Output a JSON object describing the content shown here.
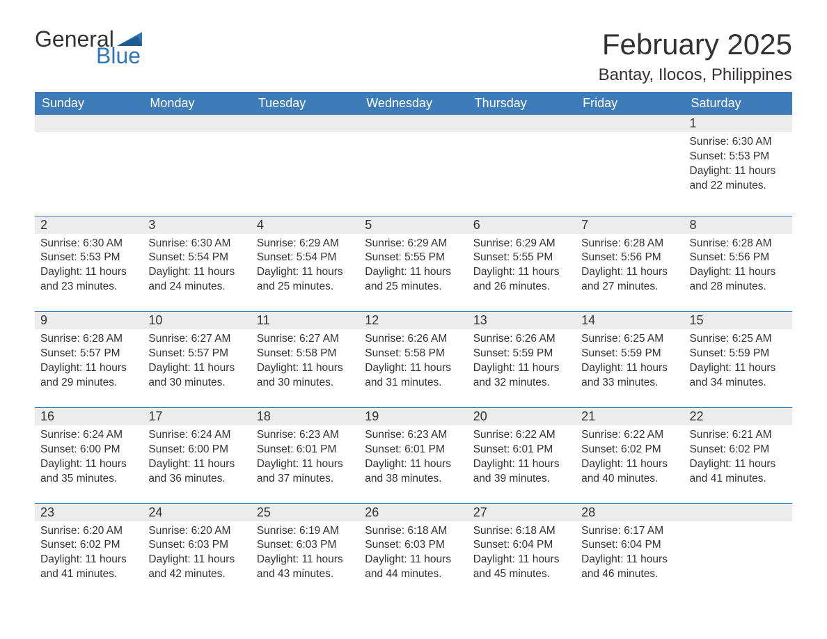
{
  "logo": {
    "text_general": "General",
    "text_blue": "Blue",
    "flag_color": "#2f77bb"
  },
  "header": {
    "month_title": "February 2025",
    "location": "Bantay, Ilocos, Philippines"
  },
  "styling": {
    "header_bg": "#3d7cb9",
    "header_text": "#ffffff",
    "daynum_bg": "#ececec",
    "body_text": "#333333",
    "rule_color": "#3d7cb9",
    "page_bg": "#ffffff",
    "font_family": "Arial",
    "title_fontsize_pt": 32,
    "location_fontsize_pt": 18,
    "dayheader_fontsize_pt": 14,
    "cell_fontsize_pt": 12
  },
  "day_headers": [
    "Sunday",
    "Monday",
    "Tuesday",
    "Wednesday",
    "Thursday",
    "Friday",
    "Saturday"
  ],
  "weeks": [
    [
      {
        "day": "",
        "sunrise": "",
        "sunset": "",
        "daylight": ""
      },
      {
        "day": "",
        "sunrise": "",
        "sunset": "",
        "daylight": ""
      },
      {
        "day": "",
        "sunrise": "",
        "sunset": "",
        "daylight": ""
      },
      {
        "day": "",
        "sunrise": "",
        "sunset": "",
        "daylight": ""
      },
      {
        "day": "",
        "sunrise": "",
        "sunset": "",
        "daylight": ""
      },
      {
        "day": "",
        "sunrise": "",
        "sunset": "",
        "daylight": ""
      },
      {
        "day": "1",
        "sunrise": "Sunrise: 6:30 AM",
        "sunset": "Sunset: 5:53 PM",
        "daylight": "Daylight: 11 hours and 22 minutes."
      }
    ],
    [
      {
        "day": "2",
        "sunrise": "Sunrise: 6:30 AM",
        "sunset": "Sunset: 5:53 PM",
        "daylight": "Daylight: 11 hours and 23 minutes."
      },
      {
        "day": "3",
        "sunrise": "Sunrise: 6:30 AM",
        "sunset": "Sunset: 5:54 PM",
        "daylight": "Daylight: 11 hours and 24 minutes."
      },
      {
        "day": "4",
        "sunrise": "Sunrise: 6:29 AM",
        "sunset": "Sunset: 5:54 PM",
        "daylight": "Daylight: 11 hours and 25 minutes."
      },
      {
        "day": "5",
        "sunrise": "Sunrise: 6:29 AM",
        "sunset": "Sunset: 5:55 PM",
        "daylight": "Daylight: 11 hours and 25 minutes."
      },
      {
        "day": "6",
        "sunrise": "Sunrise: 6:29 AM",
        "sunset": "Sunset: 5:55 PM",
        "daylight": "Daylight: 11 hours and 26 minutes."
      },
      {
        "day": "7",
        "sunrise": "Sunrise: 6:28 AM",
        "sunset": "Sunset: 5:56 PM",
        "daylight": "Daylight: 11 hours and 27 minutes."
      },
      {
        "day": "8",
        "sunrise": "Sunrise: 6:28 AM",
        "sunset": "Sunset: 5:56 PM",
        "daylight": "Daylight: 11 hours and 28 minutes."
      }
    ],
    [
      {
        "day": "9",
        "sunrise": "Sunrise: 6:28 AM",
        "sunset": "Sunset: 5:57 PM",
        "daylight": "Daylight: 11 hours and 29 minutes."
      },
      {
        "day": "10",
        "sunrise": "Sunrise: 6:27 AM",
        "sunset": "Sunset: 5:57 PM",
        "daylight": "Daylight: 11 hours and 30 minutes."
      },
      {
        "day": "11",
        "sunrise": "Sunrise: 6:27 AM",
        "sunset": "Sunset: 5:58 PM",
        "daylight": "Daylight: 11 hours and 30 minutes."
      },
      {
        "day": "12",
        "sunrise": "Sunrise: 6:26 AM",
        "sunset": "Sunset: 5:58 PM",
        "daylight": "Daylight: 11 hours and 31 minutes."
      },
      {
        "day": "13",
        "sunrise": "Sunrise: 6:26 AM",
        "sunset": "Sunset: 5:59 PM",
        "daylight": "Daylight: 11 hours and 32 minutes."
      },
      {
        "day": "14",
        "sunrise": "Sunrise: 6:25 AM",
        "sunset": "Sunset: 5:59 PM",
        "daylight": "Daylight: 11 hours and 33 minutes."
      },
      {
        "day": "15",
        "sunrise": "Sunrise: 6:25 AM",
        "sunset": "Sunset: 5:59 PM",
        "daylight": "Daylight: 11 hours and 34 minutes."
      }
    ],
    [
      {
        "day": "16",
        "sunrise": "Sunrise: 6:24 AM",
        "sunset": "Sunset: 6:00 PM",
        "daylight": "Daylight: 11 hours and 35 minutes."
      },
      {
        "day": "17",
        "sunrise": "Sunrise: 6:24 AM",
        "sunset": "Sunset: 6:00 PM",
        "daylight": "Daylight: 11 hours and 36 minutes."
      },
      {
        "day": "18",
        "sunrise": "Sunrise: 6:23 AM",
        "sunset": "Sunset: 6:01 PM",
        "daylight": "Daylight: 11 hours and 37 minutes."
      },
      {
        "day": "19",
        "sunrise": "Sunrise: 6:23 AM",
        "sunset": "Sunset: 6:01 PM",
        "daylight": "Daylight: 11 hours and 38 minutes."
      },
      {
        "day": "20",
        "sunrise": "Sunrise: 6:22 AM",
        "sunset": "Sunset: 6:01 PM",
        "daylight": "Daylight: 11 hours and 39 minutes."
      },
      {
        "day": "21",
        "sunrise": "Sunrise: 6:22 AM",
        "sunset": "Sunset: 6:02 PM",
        "daylight": "Daylight: 11 hours and 40 minutes."
      },
      {
        "day": "22",
        "sunrise": "Sunrise: 6:21 AM",
        "sunset": "Sunset: 6:02 PM",
        "daylight": "Daylight: 11 hours and 41 minutes."
      }
    ],
    [
      {
        "day": "23",
        "sunrise": "Sunrise: 6:20 AM",
        "sunset": "Sunset: 6:02 PM",
        "daylight": "Daylight: 11 hours and 41 minutes."
      },
      {
        "day": "24",
        "sunrise": "Sunrise: 6:20 AM",
        "sunset": "Sunset: 6:03 PM",
        "daylight": "Daylight: 11 hours and 42 minutes."
      },
      {
        "day": "25",
        "sunrise": "Sunrise: 6:19 AM",
        "sunset": "Sunset: 6:03 PM",
        "daylight": "Daylight: 11 hours and 43 minutes."
      },
      {
        "day": "26",
        "sunrise": "Sunrise: 6:18 AM",
        "sunset": "Sunset: 6:03 PM",
        "daylight": "Daylight: 11 hours and 44 minutes."
      },
      {
        "day": "27",
        "sunrise": "Sunrise: 6:18 AM",
        "sunset": "Sunset: 6:04 PM",
        "daylight": "Daylight: 11 hours and 45 minutes."
      },
      {
        "day": "28",
        "sunrise": "Sunrise: 6:17 AM",
        "sunset": "Sunset: 6:04 PM",
        "daylight": "Daylight: 11 hours and 46 minutes."
      },
      {
        "day": "",
        "sunrise": "",
        "sunset": "",
        "daylight": ""
      }
    ]
  ]
}
